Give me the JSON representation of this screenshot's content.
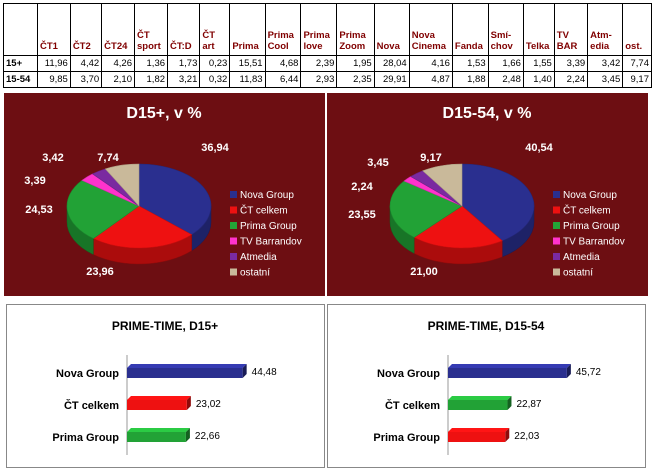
{
  "table": {
    "headers": [
      "ČT1",
      "ČT2",
      "ČT24",
      "ČT sport",
      "ČT:D",
      "ČT art",
      "Prima",
      "Prima Cool",
      "Prima love",
      "Prima Zoom",
      "Nova",
      "Nova Cinema",
      "Fanda",
      "Smí- chov",
      "Telka",
      "TV BAR",
      "Atm- edia",
      "ost."
    ],
    "rows": [
      {
        "label": "15+",
        "values": [
          "11,96",
          "4,42",
          "4,26",
          "1,36",
          "1,73",
          "0,23",
          "15,51",
          "4,68",
          "2,39",
          "1,95",
          "28,04",
          "4,16",
          "1,53",
          "1,66",
          "1,55",
          "3,39",
          "3,42",
          "7,74"
        ]
      },
      {
        "label": "15-54",
        "values": [
          "9,85",
          "3,70",
          "2,10",
          "1,82",
          "3,21",
          "0,32",
          "11,83",
          "6,44",
          "2,93",
          "2,35",
          "29,91",
          "4,87",
          "1,88",
          "2,48",
          "1,40",
          "2,24",
          "3,45",
          "9,17"
        ]
      }
    ]
  },
  "colors": {
    "nova": "#2a2f8f",
    "ct": "#ee1111",
    "prima": "#22a236",
    "barrandov": "#ff33cc",
    "atmedia": "#7a2aa0",
    "ostatni": "#c9b99a",
    "panel": "#6d0e12",
    "title_text": "#ffffff"
  },
  "chart_data": [
    {
      "type": "pie",
      "title": "D15+, v %",
      "categories": [
        "Nova Group",
        "ČT celkem",
        "Prima Group",
        "TV Barrandov",
        "Atmedia",
        "ostatní"
      ],
      "values": [
        36.94,
        23.96,
        24.53,
        3.39,
        3.42,
        7.74
      ],
      "labels": [
        "36,94",
        "23,96",
        "24,53",
        "3,39",
        "3,42",
        "7,74"
      ]
    },
    {
      "type": "pie",
      "title": "D15-54, v %",
      "categories": [
        "Nova Group",
        "ČT celkem",
        "Prima Group",
        "TV Barrandov",
        "Atmedia",
        "ostatní"
      ],
      "values": [
        40.54,
        21.0,
        23.55,
        2.24,
        3.45,
        9.17
      ],
      "labels": [
        "40,54",
        "21,00",
        "23,55",
        "2,24",
        "3,45",
        "9,17"
      ]
    },
    {
      "type": "bar",
      "title": "PRIME-TIME, D15+",
      "categories": [
        "Nova Group",
        "ČT celkem",
        "Prima Group"
      ],
      "values": [
        44.48,
        23.02,
        22.66
      ],
      "labels": [
        "44,48",
        "23,02",
        "22,66"
      ],
      "colors": [
        "#2a2f8f",
        "#ee1111",
        "#22a236"
      ]
    },
    {
      "type": "bar",
      "title": "PRIME-TIME, D15-54",
      "categories": [
        "Nova Group",
        "ČT celkem",
        "Prima Group"
      ],
      "values": [
        45.72,
        22.87,
        22.03
      ],
      "labels": [
        "45,72",
        "22,87",
        "22,03"
      ],
      "colors": [
        "#2a2f8f",
        "#22a236",
        "#ee1111"
      ]
    }
  ]
}
